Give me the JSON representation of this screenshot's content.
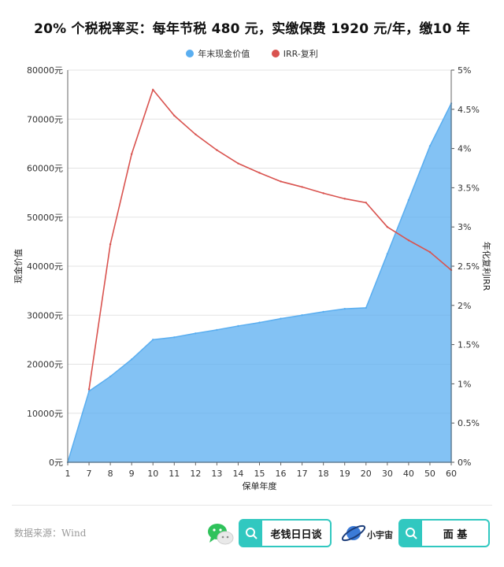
{
  "title": "20% 个税税率买：每年节税 480 元，实缴保费 1920 元/年，缴10 年",
  "legend": {
    "cash_value": {
      "label": "年末现金价值",
      "color": "#5aaef0"
    },
    "irr": {
      "label": "IRR-复利",
      "color": "#d9534f"
    }
  },
  "chart_data": {
    "type": "area",
    "title": "20% 个税税率买：每年节税 480 元，实缴保费 1920 元/年，缴10 年",
    "xlabel": "保单年度",
    "ylabel_left": "现金价值",
    "ylabel_right": "年化复利IRR",
    "categories": [
      "1",
      "7",
      "8",
      "9",
      "10",
      "11",
      "12",
      "13",
      "14",
      "15",
      "16",
      "17",
      "18",
      "19",
      "20",
      "30",
      "40",
      "50",
      "60"
    ],
    "left_axis": {
      "min": 0,
      "max": 80000,
      "ticks": [
        "0元",
        "10000元",
        "20000元",
        "30000元",
        "40000元",
        "50000元",
        "60000元",
        "70000元",
        "80000元"
      ]
    },
    "right_axis": {
      "min": 0,
      "max": 0.05,
      "ticks": [
        "0%",
        "0.5%",
        "1%",
        "1.5%",
        "2%",
        "2.5%",
        "3%",
        "3.5%",
        "4%",
        "4.5%",
        "5%"
      ]
    },
    "series": [
      {
        "name": "年末现金价值",
        "type": "area",
        "axis": "left",
        "color": "#5aaef0",
        "values": [
          0,
          14500,
          17500,
          21000,
          25000,
          25500,
          26300,
          27000,
          27800,
          28500,
          29300,
          30000,
          30700,
          31300,
          31500,
          42500,
          53500,
          64500,
          73200
        ]
      },
      {
        "name": "IRR-复利",
        "type": "line",
        "axis": "right",
        "color": "#d9534f",
        "values": [
          null,
          0.0093,
          0.0278,
          0.0393,
          0.0475,
          0.0442,
          0.0418,
          0.0398,
          0.0381,
          0.0369,
          0.0358,
          0.0351,
          0.0343,
          0.0336,
          0.0331,
          0.03,
          0.0283,
          0.0268,
          0.0245
        ]
      }
    ],
    "grid": true
  },
  "footer": {
    "source": "数据来源：Wind",
    "brand1": "老钱日日谈",
    "brand2_small": "小宇宙",
    "brand2": "面  基"
  }
}
